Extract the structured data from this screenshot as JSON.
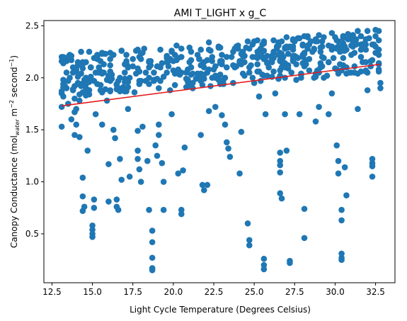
{
  "chart_data": {
    "type": "scatter",
    "title": "AMI T_LIGHT x g_C",
    "xlabel": "Light Cycle Temperature (Degrees Celsius)",
    "ylabel": {
      "pre": "Canopy Conductance (mol",
      "sub": "water",
      "mid": " m",
      "sup1": "−2",
      "mid2": " second",
      "sup2": "−1",
      "post": ")"
    },
    "xlim": [
      12.0,
      33.7
    ],
    "ylim": [
      0.03,
      2.55
    ],
    "xticks": [
      12.5,
      15.0,
      17.5,
      20.0,
      22.5,
      25.0,
      27.5,
      30.0,
      32.5
    ],
    "xtick_labels": [
      "12.5",
      "15.0",
      "17.5",
      "20.0",
      "22.5",
      "25.0",
      "27.5",
      "30.0",
      "32.5"
    ],
    "yticks": [
      0.5,
      1.0,
      1.5,
      2.0,
      2.5
    ],
    "ytick_labels": [
      "0.5",
      "1.0",
      "1.5",
      "2.0",
      "2.5"
    ],
    "grid": false,
    "colors": {
      "points": "#1f77b4",
      "fit": "#e41a1c"
    },
    "fit_line": {
      "x": [
        13.1,
        32.8
      ],
      "y": [
        1.73,
        2.13
      ]
    },
    "points": [
      [
        13.1,
        1.53
      ],
      [
        13.1,
        1.72
      ],
      [
        13.1,
        1.85
      ],
      [
        13.2,
        1.98
      ],
      [
        13.2,
        2.14
      ],
      [
        13.3,
        2.18
      ],
      [
        13.4,
        2.05
      ],
      [
        13.4,
        1.9
      ],
      [
        13.5,
        1.75
      ],
      [
        13.6,
        2.22
      ],
      [
        13.6,
        2.0
      ],
      [
        13.7,
        1.6
      ],
      [
        13.8,
        2.1
      ],
      [
        13.9,
        1.8
      ],
      [
        13.9,
        1.45
      ],
      [
        13.9,
        1.67
      ],
      [
        14.0,
        1.7
      ],
      [
        14.0,
        1.55
      ],
      [
        14.1,
        2.12
      ],
      [
        14.1,
        1.95
      ],
      [
        14.2,
        1.78
      ],
      [
        14.2,
        1.43
      ],
      [
        14.3,
        2.25
      ],
      [
        14.4,
        2.15
      ],
      [
        14.4,
        1.04
      ],
      [
        14.4,
        0.86
      ],
      [
        14.5,
        0.76
      ],
      [
        14.4,
        0.72
      ],
      [
        14.6,
        1.9
      ],
      [
        14.7,
        1.3
      ],
      [
        14.8,
        2.25
      ],
      [
        14.9,
        2.1
      ],
      [
        15.0,
        0.58
      ],
      [
        15.0,
        0.54
      ],
      [
        15.0,
        0.5
      ],
      [
        15.0,
        0.47
      ],
      [
        15.1,
        0.83
      ],
      [
        15.1,
        0.75
      ],
      [
        15.2,
        1.65
      ],
      [
        15.3,
        2.2
      ],
      [
        15.5,
        2.16
      ],
      [
        15.6,
        1.55
      ],
      [
        15.7,
        2.05
      ],
      [
        15.9,
        1.78
      ],
      [
        16.0,
        0.81
      ],
      [
        16.0,
        1.17
      ],
      [
        16.1,
        2.12
      ],
      [
        16.3,
        1.5
      ],
      [
        16.4,
        1.42
      ],
      [
        16.5,
        0.83
      ],
      [
        16.5,
        0.76
      ],
      [
        16.6,
        0.73
      ],
      [
        16.7,
        1.22
      ],
      [
        16.8,
        1.02
      ],
      [
        16.8,
        1.88
      ],
      [
        17.0,
        2.05
      ],
      [
        17.1,
        2.22
      ],
      [
        17.2,
        1.7
      ],
      [
        17.3,
        1.05
      ],
      [
        17.5,
        2.18
      ],
      [
        17.6,
        1.86
      ],
      [
        17.8,
        1.49
      ],
      [
        17.8,
        1.3
      ],
      [
        17.8,
        1.22
      ],
      [
        17.9,
        1.12
      ],
      [
        18.0,
        1.0
      ],
      [
        18.1,
        1.53
      ],
      [
        18.2,
        2.28
      ],
      [
        18.3,
        2.05
      ],
      [
        18.4,
        1.2
      ],
      [
        18.5,
        0.73
      ],
      [
        18.7,
        0.53
      ],
      [
        18.7,
        0.42
      ],
      [
        18.7,
        0.27
      ],
      [
        18.7,
        0.17
      ],
      [
        18.7,
        0.15
      ],
      [
        18.9,
        1.35
      ],
      [
        19.0,
        1.25
      ],
      [
        19.1,
        1.55
      ],
      [
        19.1,
        1.45
      ],
      [
        19.2,
        2.1
      ],
      [
        19.3,
        1.18
      ],
      [
        19.4,
        1.0
      ],
      [
        19.4,
        0.73
      ],
      [
        19.6,
        2.15
      ],
      [
        19.8,
        1.88
      ],
      [
        19.9,
        1.65
      ],
      [
        20.1,
        2.22
      ],
      [
        20.3,
        1.08
      ],
      [
        20.5,
        0.73
      ],
      [
        20.5,
        0.69
      ],
      [
        20.6,
        1.11
      ],
      [
        20.7,
        1.33
      ],
      [
        21.0,
        2.15
      ],
      [
        21.2,
        1.9
      ],
      [
        21.5,
        2.22
      ],
      [
        21.7,
        1.45
      ],
      [
        21.8,
        0.97
      ],
      [
        21.9,
        0.92
      ],
      [
        22.1,
        0.97
      ],
      [
        22.2,
        1.68
      ],
      [
        22.4,
        2.0
      ],
      [
        22.6,
        1.72
      ],
      [
        22.8,
        2.3
      ],
      [
        23.0,
        1.64
      ],
      [
        23.2,
        1.55
      ],
      [
        23.3,
        1.38
      ],
      [
        23.4,
        1.32
      ],
      [
        23.5,
        1.24
      ],
      [
        23.7,
        1.95
      ],
      [
        24.0,
        2.28
      ],
      [
        24.1,
        1.08
      ],
      [
        24.2,
        1.48
      ],
      [
        24.4,
        2.15
      ],
      [
        24.6,
        0.6
      ],
      [
        24.7,
        0.44
      ],
      [
        24.7,
        0.39
      ],
      [
        24.9,
        2.32
      ],
      [
        25.0,
        1.95
      ],
      [
        25.3,
        1.82
      ],
      [
        25.6,
        0.26
      ],
      [
        25.6,
        0.2
      ],
      [
        25.6,
        0.16
      ],
      [
        25.7,
        1.65
      ],
      [
        25.9,
        2.1
      ],
      [
        26.2,
        2.25
      ],
      [
        26.3,
        1.85
      ],
      [
        26.6,
        1.28
      ],
      [
        26.6,
        1.2
      ],
      [
        26.6,
        1.16
      ],
      [
        26.6,
        1.09
      ],
      [
        26.6,
        0.89
      ],
      [
        26.7,
        0.84
      ],
      [
        26.9,
        1.65
      ],
      [
        27.0,
        1.3
      ],
      [
        27.2,
        0.24
      ],
      [
        27.2,
        0.22
      ],
      [
        27.4,
        2.3
      ],
      [
        27.6,
        1.98
      ],
      [
        27.8,
        1.65
      ],
      [
        28.1,
        0.74
      ],
      [
        28.1,
        0.46
      ],
      [
        28.4,
        2.18
      ],
      [
        28.8,
        1.58
      ],
      [
        29.0,
        1.72
      ],
      [
        29.3,
        2.0
      ],
      [
        29.6,
        1.65
      ],
      [
        29.8,
        1.85
      ],
      [
        30.1,
        1.35
      ],
      [
        30.2,
        1.2
      ],
      [
        30.2,
        1.08
      ],
      [
        30.4,
        0.73
      ],
      [
        30.4,
        0.63
      ],
      [
        30.4,
        0.31
      ],
      [
        30.4,
        0.27
      ],
      [
        30.4,
        0.25
      ],
      [
        30.6,
        1.14
      ],
      [
        30.7,
        0.87
      ],
      [
        30.9,
        2.38
      ],
      [
        31.2,
        2.05
      ],
      [
        31.4,
        1.7
      ],
      [
        31.7,
        2.15
      ],
      [
        32.0,
        1.88
      ],
      [
        32.3,
        1.22
      ],
      [
        32.3,
        1.18
      ],
      [
        32.3,
        1.15
      ],
      [
        32.3,
        1.05
      ],
      [
        32.5,
        2.4
      ],
      [
        32.8,
        1.95
      ],
      [
        32.8,
        1.9
      ],
      [
        32.5,
        2.3
      ],
      [
        32.7,
        2.36
      ],
      [
        13.5,
        1.97
      ],
      [
        14.6,
        2.0
      ],
      [
        15.2,
        2.05
      ],
      [
        16.1,
        2.18
      ],
      [
        16.7,
        2.0
      ],
      [
        17.3,
        2.0
      ],
      [
        17.9,
        2.2
      ],
      [
        18.6,
        2.12
      ],
      [
        19.2,
        1.97
      ],
      [
        19.9,
        2.25
      ],
      [
        20.5,
        2.05
      ],
      [
        21.1,
        2.25
      ],
      [
        21.8,
        2.13
      ],
      [
        22.4,
        2.2
      ],
      [
        23.0,
        2.13
      ],
      [
        23.6,
        2.2
      ],
      [
        24.2,
        2.13
      ],
      [
        24.9,
        2.2
      ],
      [
        25.5,
        2.25
      ],
      [
        26.1,
        2.18
      ],
      [
        26.8,
        2.2
      ],
      [
        27.4,
        2.17
      ],
      [
        28.0,
        2.2
      ],
      [
        28.6,
        2.25
      ],
      [
        29.2,
        2.3
      ],
      [
        29.8,
        2.27
      ],
      [
        30.5,
        2.33
      ],
      [
        31.1,
        2.3
      ],
      [
        31.8,
        2.3
      ],
      [
        32.3,
        2.32
      ]
    ]
  }
}
